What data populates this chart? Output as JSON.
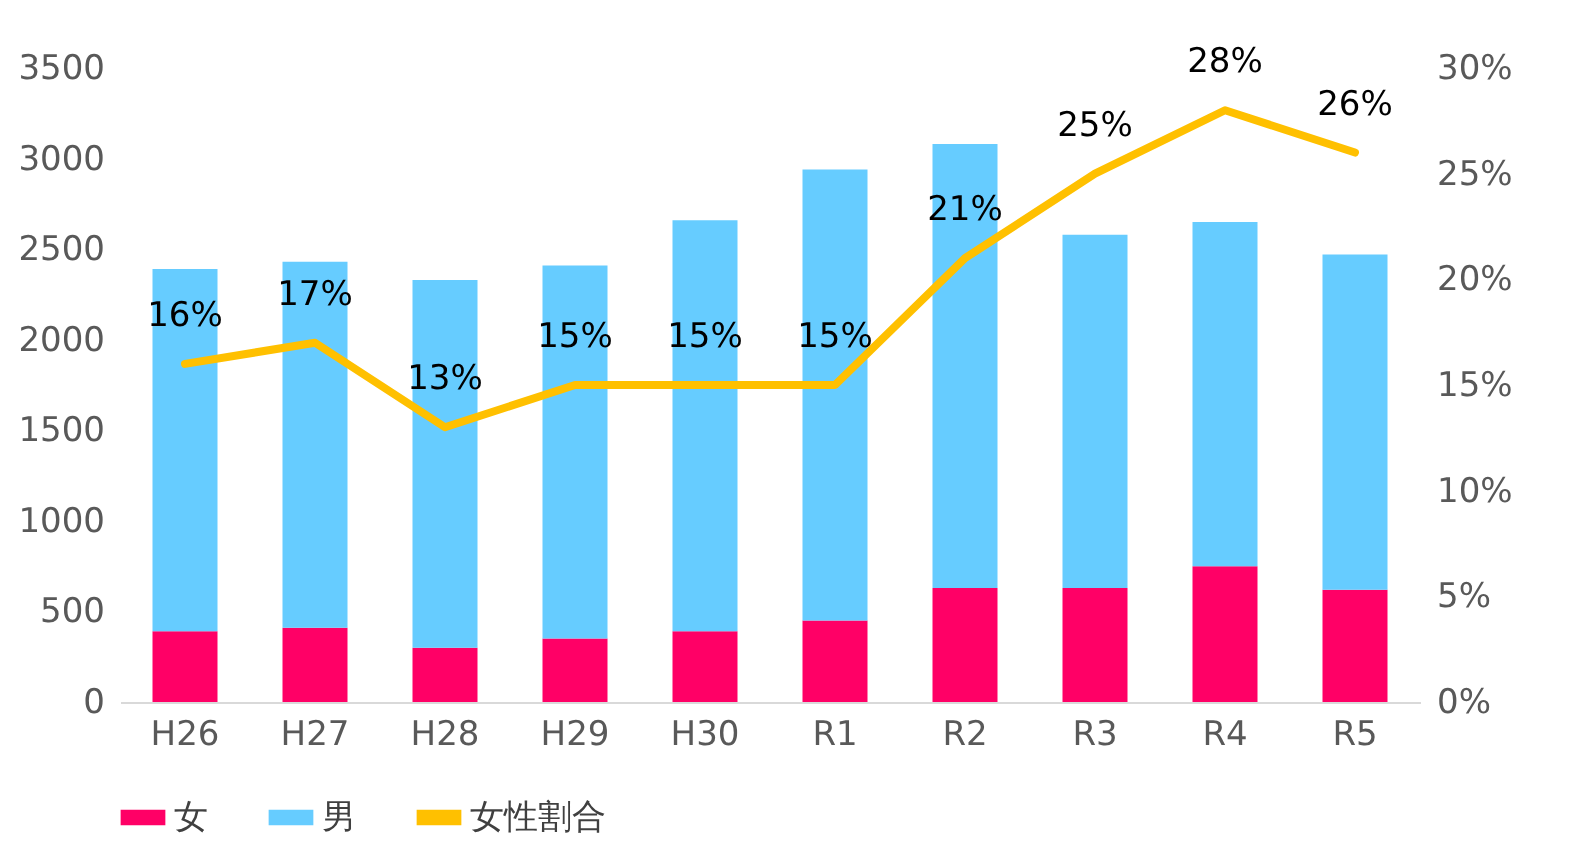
{
  "chart_data": {
    "type": "bar",
    "stacked": true,
    "categories": [
      "H26",
      "H27",
      "H28",
      "H29",
      "H30",
      "R1",
      "R2",
      "R3",
      "R4",
      "R5"
    ],
    "series": [
      {
        "name": "女",
        "color": "#ff0066",
        "values": [
          390,
          410,
          300,
          350,
          390,
          450,
          630,
          630,
          750,
          620
        ]
      },
      {
        "name": "男",
        "color": "#66ccff",
        "values": [
          2000,
          2020,
          2030,
          2060,
          2270,
          2490,
          2450,
          1950,
          1900,
          1850
        ]
      },
      {
        "name": "女性割合",
        "type": "line",
        "axis": "y2",
        "color": "#ffc000",
        "values": [
          16,
          17,
          13,
          15,
          15,
          15,
          21,
          25,
          28,
          26
        ],
        "value_labels": [
          "16%",
          "17%",
          "13%",
          "15%",
          "15%",
          "15%",
          "21%",
          "25%",
          "28%",
          "26%"
        ]
      }
    ],
    "ylim": [
      0,
      3500
    ],
    "yticks": [
      0,
      500,
      1000,
      1500,
      2000,
      2500,
      3000,
      3500
    ],
    "y2lim": [
      0,
      30
    ],
    "y2ticks": [
      {
        "value": 0,
        "label": "0%"
      },
      {
        "value": 5,
        "label": "5%"
      },
      {
        "value": 10,
        "label": "10%"
      },
      {
        "value": 15,
        "label": "15%"
      },
      {
        "value": 20,
        "label": "20%"
      },
      {
        "value": 25,
        "label": "25%"
      },
      {
        "value": 30,
        "label": "30%"
      }
    ],
    "legend": "bottom"
  }
}
